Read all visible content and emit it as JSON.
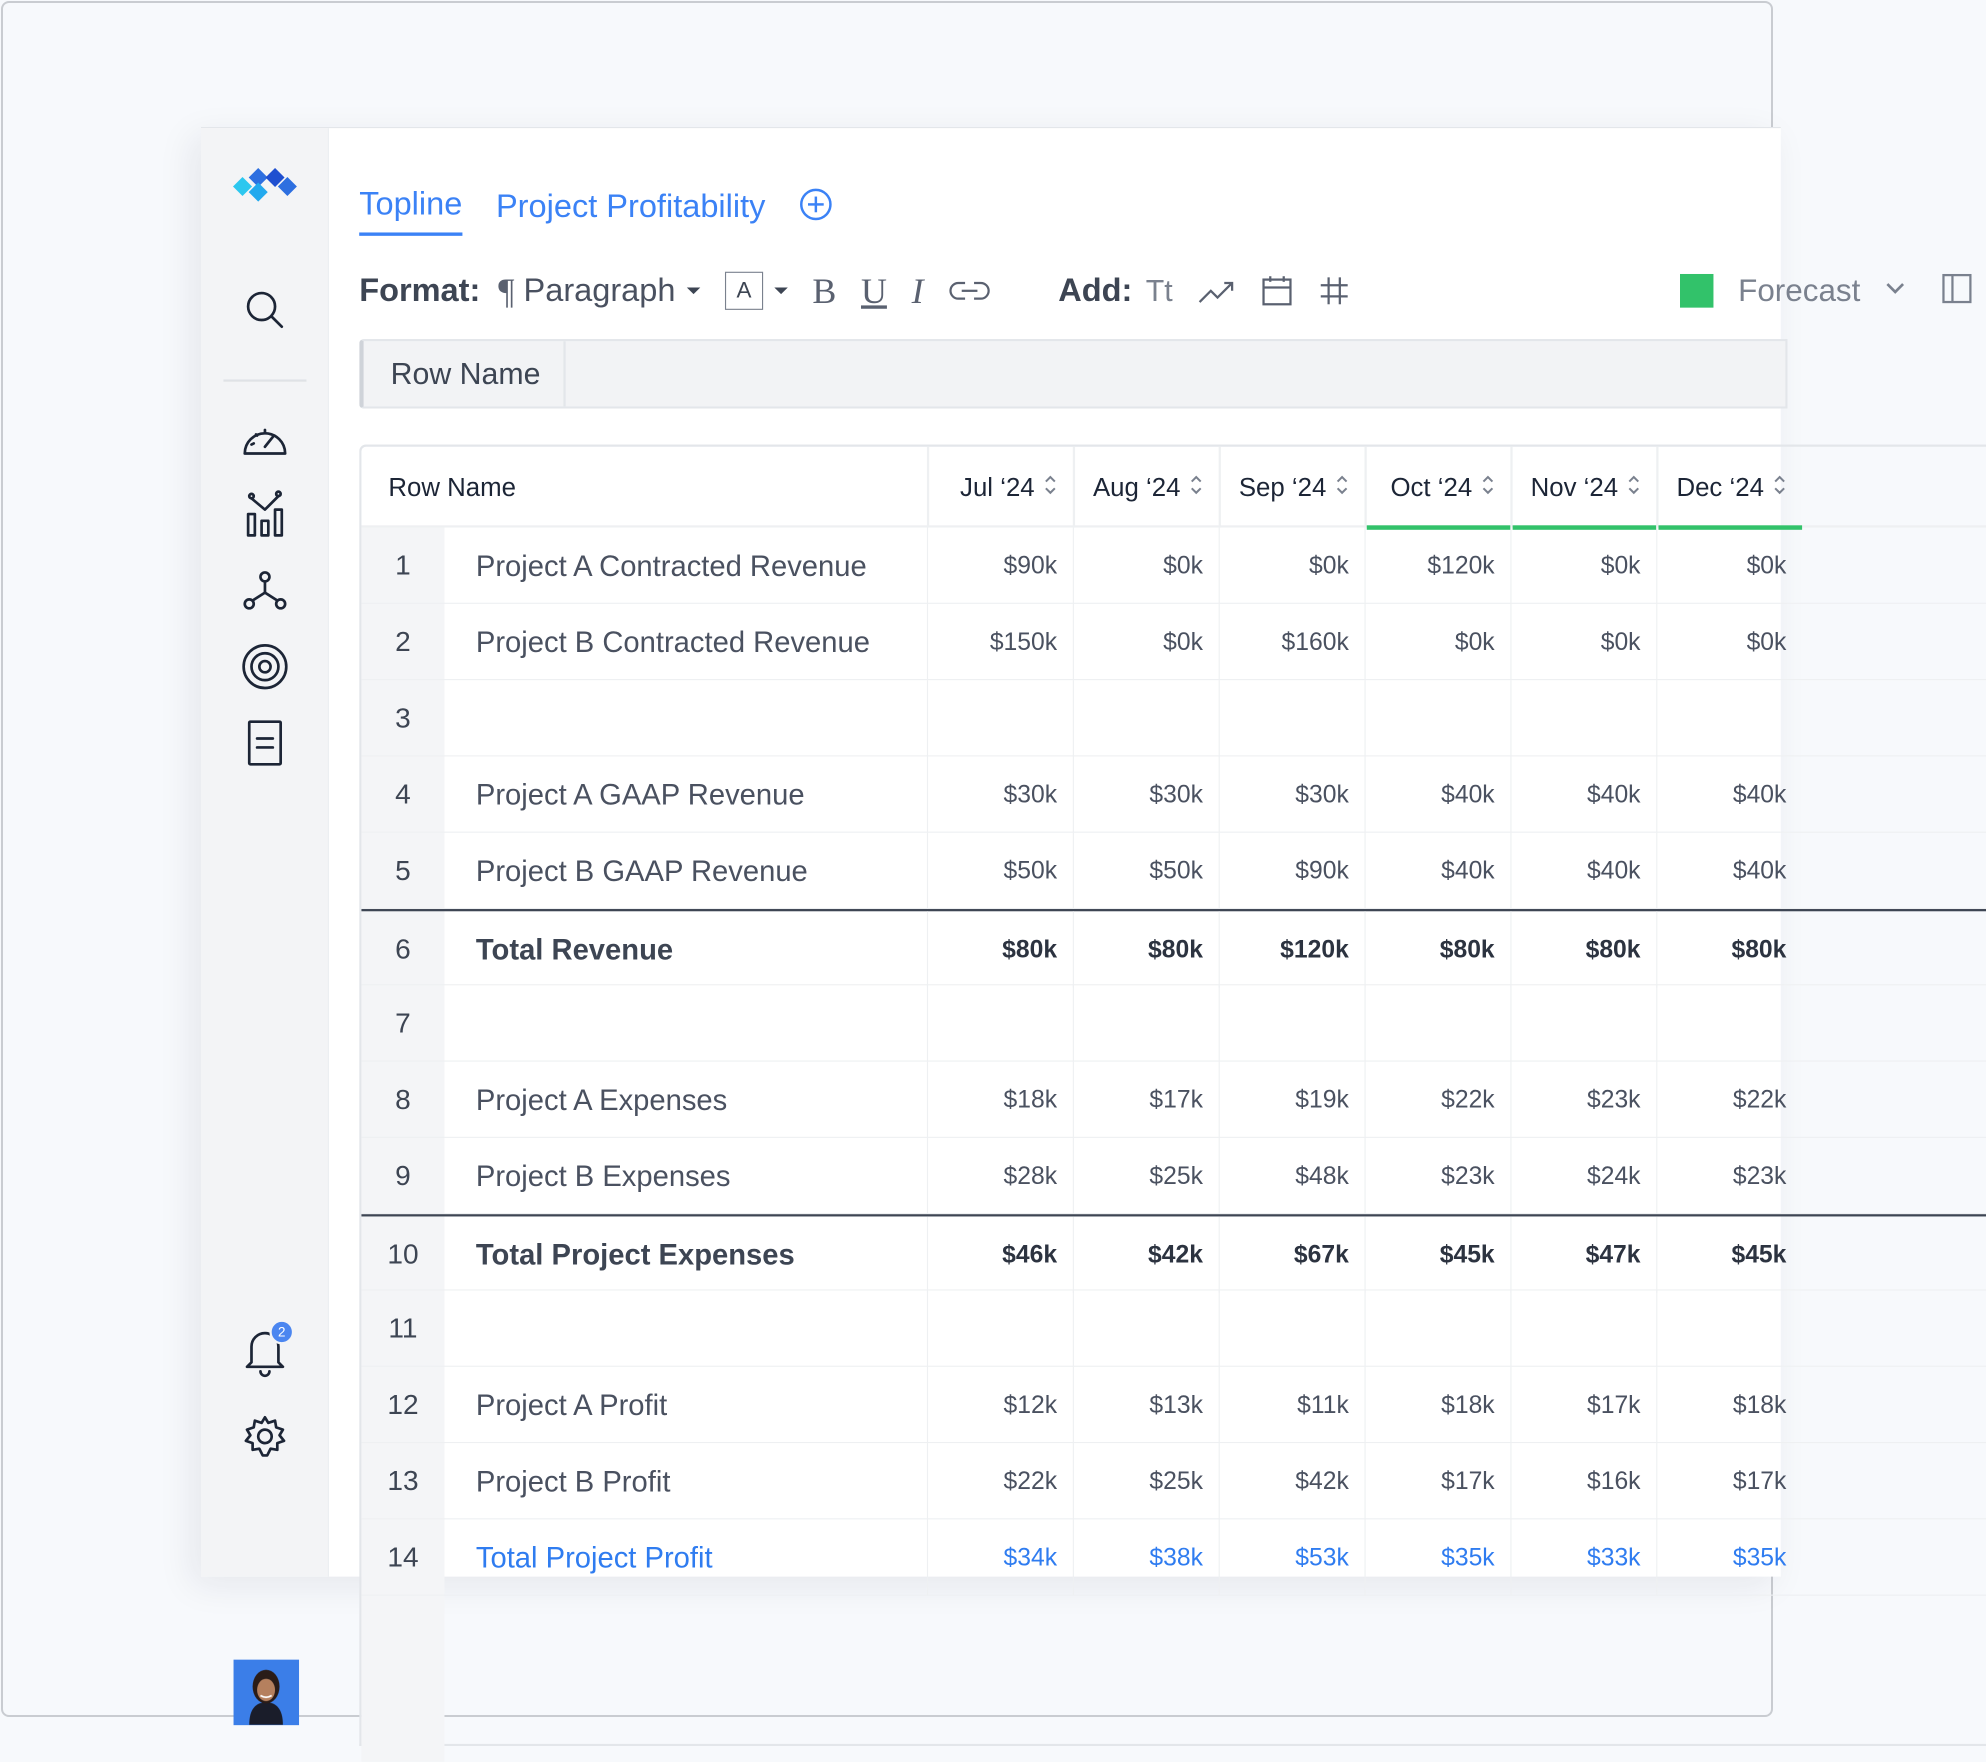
{
  "tabs": [
    {
      "label": "Topline",
      "active": true
    },
    {
      "label": "Project Profitability",
      "active": false
    }
  ],
  "toolbar": {
    "format_label": "Format:",
    "paragraph_label": "Paragraph",
    "font_box": "A",
    "bold": "B",
    "underline": "U",
    "italic": "I",
    "add_label": "Add:",
    "text_tool": "Tt",
    "forecast_label": "Forecast",
    "forecast_color": "#32c26a"
  },
  "formula_bar": {
    "name": "Row Name"
  },
  "notifications": {
    "count": "2"
  },
  "table": {
    "header_name": "Row Name",
    "columns": [
      "Jul ‘24",
      "Aug ‘24",
      "Sep ‘24",
      "Oct ‘24",
      "Nov ‘24",
      "Dec ‘24"
    ],
    "forecast_columns": [
      3,
      4,
      5
    ],
    "rows": [
      {
        "num": "1",
        "name": "Project A Contracted Revenue",
        "style": "normal",
        "values": [
          "$90k",
          "$0k",
          "$0k",
          "$120k",
          "$0k",
          "$0k"
        ]
      },
      {
        "num": "2",
        "name": "Project B Contracted Revenue",
        "style": "normal",
        "values": [
          "$150k",
          "$0k",
          "$160k",
          "$0k",
          "$0k",
          "$0k"
        ]
      },
      {
        "num": "3",
        "name": "",
        "style": "normal",
        "values": [
          "",
          "",
          "",
          "",
          "",
          ""
        ]
      },
      {
        "num": "4",
        "name": "Project A GAAP Revenue",
        "style": "normal",
        "values": [
          "$30k",
          "$30k",
          "$30k",
          "$40k",
          "$40k",
          "$40k"
        ]
      },
      {
        "num": "5",
        "name": "Project B GAAP Revenue",
        "style": "normal",
        "values": [
          "$50k",
          "$50k",
          "$90k",
          "$40k",
          "$40k",
          "$40k"
        ]
      },
      {
        "num": "6",
        "name": "Total Revenue",
        "style": "bold",
        "values": [
          "$80k",
          "$80k",
          "$120k",
          "$80k",
          "$80k",
          "$80k"
        ]
      },
      {
        "num": "7",
        "name": "",
        "style": "normal",
        "values": [
          "",
          "",
          "",
          "",
          "",
          ""
        ]
      },
      {
        "num": "8",
        "name": "Project A Expenses",
        "style": "normal",
        "values": [
          "$18k",
          "$17k",
          "$19k",
          "$22k",
          "$23k",
          "$22k"
        ]
      },
      {
        "num": "9",
        "name": "Project B Expenses",
        "style": "normal",
        "values": [
          "$28k",
          "$25k",
          "$48k",
          "$23k",
          "$24k",
          "$23k"
        ]
      },
      {
        "num": "10",
        "name": "Total Project Expenses",
        "style": "bold",
        "values": [
          "$46k",
          "$42k",
          "$67k",
          "$45k",
          "$47k",
          "$45k"
        ]
      },
      {
        "num": "11",
        "name": "",
        "style": "normal",
        "values": [
          "",
          "",
          "",
          "",
          "",
          ""
        ]
      },
      {
        "num": "12",
        "name": "Project A Profit",
        "style": "normal",
        "values": [
          "$12k",
          "$13k",
          "$11k",
          "$18k",
          "$17k",
          "$18k"
        ]
      },
      {
        "num": "13",
        "name": "Project B Profit",
        "style": "normal",
        "values": [
          "$22k",
          "$25k",
          "$42k",
          "$17k",
          "$16k",
          "$17k"
        ]
      },
      {
        "num": "14",
        "name": "Total Project Profit",
        "style": "blue",
        "values": [
          "$34k",
          "$38k",
          "$53k",
          "$35k",
          "$33k",
          "$35k"
        ]
      }
    ]
  }
}
